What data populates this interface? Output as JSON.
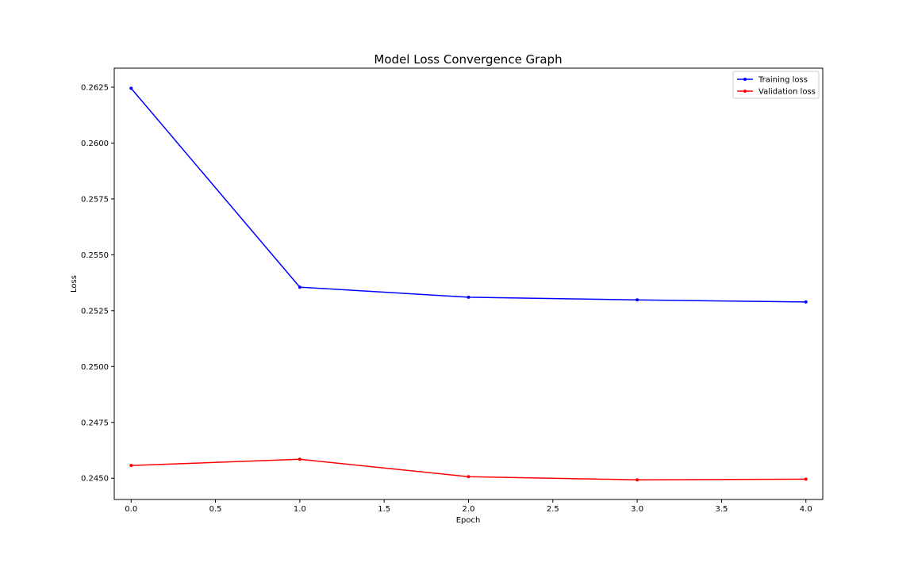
{
  "chart_data": {
    "type": "line",
    "title": "Model Loss Convergence Graph",
    "xlabel": "Epoch",
    "ylabel": "Loss",
    "xlim": [
      -0.1,
      4.1
    ],
    "ylim": [
      0.24405,
      0.26335
    ],
    "x_ticks": [
      0.0,
      0.5,
      1.0,
      1.5,
      2.0,
      2.5,
      3.0,
      3.5,
      4.0
    ],
    "x_tick_labels": [
      "0.0",
      "0.5",
      "1.0",
      "1.5",
      "2.0",
      "2.5",
      "3.0",
      "3.5",
      "4.0"
    ],
    "y_ticks": [
      0.245,
      0.2475,
      0.25,
      0.2525,
      0.255,
      0.2575,
      0.26,
      0.2625
    ],
    "y_tick_labels": [
      "0.2450",
      "0.2475",
      "0.2500",
      "0.2525",
      "0.2550",
      "0.2575",
      "0.2600",
      "0.2625"
    ],
    "grid": false,
    "legend_position": "top-right",
    "x": [
      0,
      1,
      2,
      3,
      4
    ],
    "series": [
      {
        "name": "Training loss",
        "color": "#0000ff",
        "marker": "dot",
        "values": [
          0.26245,
          0.25355,
          0.2531,
          0.25298,
          0.25289
        ]
      },
      {
        "name": "Validation loss",
        "color": "#ff0000",
        "marker": "dot",
        "values": [
          0.24557,
          0.24585,
          0.24507,
          0.24493,
          0.24496
        ]
      }
    ]
  }
}
